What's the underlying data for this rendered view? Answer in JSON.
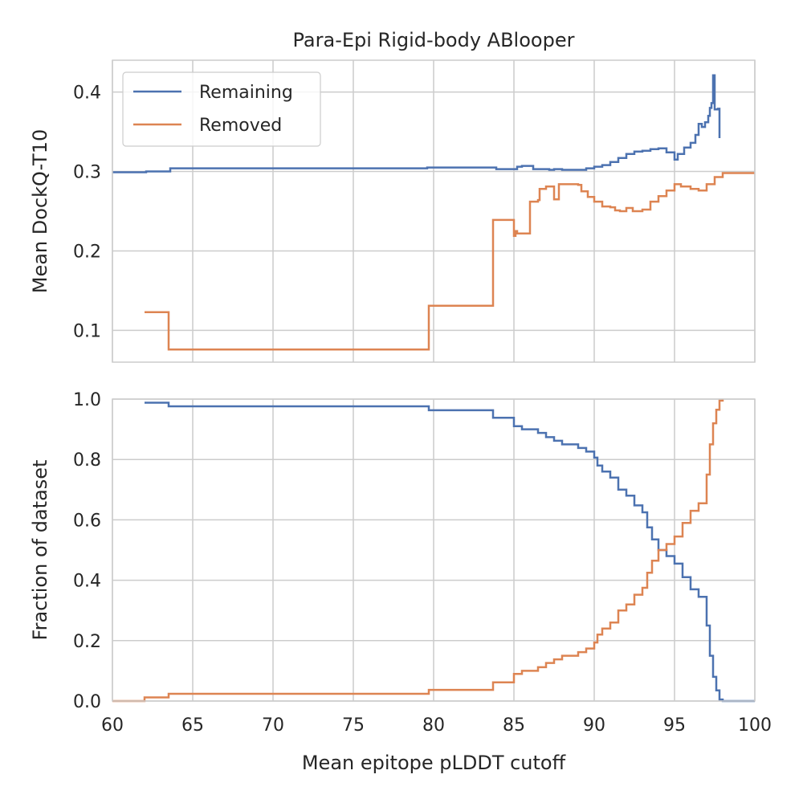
{
  "chart_data": [
    {
      "type": "line",
      "title": "Para-Epi Rigid-body ABlooper",
      "xlabel": "",
      "ylabel": "Mean DockQ-T10",
      "xlim": [
        60,
        100
      ],
      "ylim": [
        0.06,
        0.44
      ],
      "xticks": [
        60,
        65,
        70,
        75,
        80,
        85,
        90,
        95,
        100
      ],
      "yticks": [
        0.1,
        0.2,
        0.3,
        0.4
      ],
      "ytick_labels": [
        "0.1",
        "0.2",
        "0.3",
        "0.4"
      ],
      "grid": true,
      "legend": "upper-left",
      "series": [
        {
          "name": "Remaining",
          "color": "#4c72b0",
          "step": true,
          "points": [
            [
              60,
              0.299
            ],
            [
              62,
              0.299
            ],
            [
              62.1,
              0.3
            ],
            [
              63.5,
              0.3
            ],
            [
              63.6,
              0.304
            ],
            [
              79.5,
              0.304
            ],
            [
              79.6,
              0.305
            ],
            [
              83.8,
              0.305
            ],
            [
              83.9,
              0.303
            ],
            [
              85,
              0.303
            ],
            [
              85.2,
              0.306
            ],
            [
              85.5,
              0.307
            ],
            [
              86,
              0.307
            ],
            [
              86.2,
              0.303
            ],
            [
              87,
              0.303
            ],
            [
              87.2,
              0.302
            ],
            [
              87.5,
              0.303
            ],
            [
              87.8,
              0.303
            ],
            [
              88,
              0.302
            ],
            [
              89,
              0.302
            ],
            [
              89.5,
              0.304
            ],
            [
              90,
              0.306
            ],
            [
              90.5,
              0.308
            ],
            [
              91,
              0.312
            ],
            [
              91.5,
              0.317
            ],
            [
              92,
              0.322
            ],
            [
              92.5,
              0.325
            ],
            [
              93,
              0.326
            ],
            [
              93.5,
              0.328
            ],
            [
              94,
              0.329
            ],
            [
              94.5,
              0.324
            ],
            [
              95,
              0.315
            ],
            [
              95.2,
              0.322
            ],
            [
              95.6,
              0.33
            ],
            [
              96,
              0.336
            ],
            [
              96.3,
              0.346
            ],
            [
              96.5,
              0.36
            ],
            [
              96.7,
              0.356
            ],
            [
              96.9,
              0.362
            ],
            [
              97.1,
              0.37
            ],
            [
              97.2,
              0.38
            ],
            [
              97.3,
              0.386
            ],
            [
              97.4,
              0.421
            ],
            [
              97.5,
              0.378
            ],
            [
              97.7,
              0.379
            ],
            [
              97.8,
              0.342
            ]
          ]
        },
        {
          "name": "Removed",
          "color": "#dd8452",
          "step": true,
          "points": [
            [
              62,
              0.123
            ],
            [
              63.5,
              0.123
            ],
            [
              63.5,
              0.076
            ],
            [
              79.7,
              0.076
            ],
            [
              79.7,
              0.131
            ],
            [
              83.7,
              0.131
            ],
            [
              83.7,
              0.239
            ],
            [
              85,
              0.239
            ],
            [
              85,
              0.219
            ],
            [
              85.1,
              0.225
            ],
            [
              85.2,
              0.222
            ],
            [
              86,
              0.222
            ],
            [
              86,
              0.262
            ],
            [
              86.5,
              0.264
            ],
            [
              86.6,
              0.278
            ],
            [
              87,
              0.281
            ],
            [
              87.5,
              0.281
            ],
            [
              87.5,
              0.265
            ],
            [
              87.8,
              0.265
            ],
            [
              87.8,
              0.284
            ],
            [
              88.5,
              0.284
            ],
            [
              89,
              0.283
            ],
            [
              89.2,
              0.275
            ],
            [
              89.6,
              0.268
            ],
            [
              90,
              0.262
            ],
            [
              90.5,
              0.256
            ],
            [
              91,
              0.255
            ],
            [
              91.3,
              0.251
            ],
            [
              91.6,
              0.25
            ],
            [
              92,
              0.254
            ],
            [
              92.4,
              0.25
            ],
            [
              93,
              0.252
            ],
            [
              93.5,
              0.262
            ],
            [
              94,
              0.269
            ],
            [
              94.5,
              0.276
            ],
            [
              95,
              0.284
            ],
            [
              95.4,
              0.281
            ],
            [
              96,
              0.278
            ],
            [
              96.5,
              0.276
            ],
            [
              97,
              0.284
            ],
            [
              97.5,
              0.293
            ],
            [
              98,
              0.298
            ],
            [
              100,
              0.298
            ]
          ]
        }
      ]
    },
    {
      "type": "line",
      "title": "",
      "xlabel": "Mean epitope pLDDT cutoff",
      "ylabel": "Fraction of dataset",
      "xlim": [
        60,
        100
      ],
      "ylim": [
        0.0,
        1.0
      ],
      "xticks": [
        60,
        65,
        70,
        75,
        80,
        85,
        90,
        95,
        100
      ],
      "xtick_labels": [
        "60",
        "65",
        "70",
        "75",
        "80",
        "85",
        "90",
        "95",
        "100"
      ],
      "yticks": [
        0.0,
        0.2,
        0.4,
        0.6,
        0.8,
        1.0
      ],
      "ytick_labels": [
        "0.0",
        "0.2",
        "0.4",
        "0.6",
        "0.8",
        "1.0"
      ],
      "grid": true,
      "series": [
        {
          "name": "Remaining",
          "color": "#4c72b0",
          "step": true,
          "points": [
            [
              62,
              0.988
            ],
            [
              63.5,
              0.988
            ],
            [
              63.5,
              0.976
            ],
            [
              79.7,
              0.976
            ],
            [
              79.7,
              0.963
            ],
            [
              83.7,
              0.963
            ],
            [
              83.7,
              0.938
            ],
            [
              85,
              0.938
            ],
            [
              85,
              0.91
            ],
            [
              85.5,
              0.9
            ],
            [
              86.5,
              0.888
            ],
            [
              87,
              0.874
            ],
            [
              87.5,
              0.862
            ],
            [
              88,
              0.85
            ],
            [
              89,
              0.838
            ],
            [
              89.5,
              0.826
            ],
            [
              90,
              0.806
            ],
            [
              90.2,
              0.78
            ],
            [
              90.5,
              0.76
            ],
            [
              91,
              0.74
            ],
            [
              91.5,
              0.7
            ],
            [
              92,
              0.68
            ],
            [
              92.5,
              0.648
            ],
            [
              93,
              0.625
            ],
            [
              93.3,
              0.575
            ],
            [
              93.6,
              0.535
            ],
            [
              94,
              0.5
            ],
            [
              94.5,
              0.48
            ],
            [
              95,
              0.455
            ],
            [
              95.5,
              0.41
            ],
            [
              96,
              0.37
            ],
            [
              96.5,
              0.345
            ],
            [
              97,
              0.25
            ],
            [
              97.2,
              0.15
            ],
            [
              97.4,
              0.08
            ],
            [
              97.6,
              0.035
            ],
            [
              97.8,
              0.005
            ],
            [
              98,
              0.0
            ],
            [
              100,
              0.0
            ]
          ]
        },
        {
          "name": "Removed",
          "color": "#dd8452",
          "step": true,
          "points": [
            [
              60,
              0.0
            ],
            [
              62,
              0.0
            ],
            [
              62,
              0.012
            ],
            [
              63.5,
              0.012
            ],
            [
              63.5,
              0.024
            ],
            [
              79.7,
              0.024
            ],
            [
              79.7,
              0.037
            ],
            [
              83.7,
              0.037
            ],
            [
              83.7,
              0.062
            ],
            [
              85,
              0.062
            ],
            [
              85,
              0.09
            ],
            [
              85.5,
              0.1
            ],
            [
              86.5,
              0.112
            ],
            [
              87,
              0.126
            ],
            [
              87.5,
              0.138
            ],
            [
              88,
              0.15
            ],
            [
              89,
              0.162
            ],
            [
              89.5,
              0.174
            ],
            [
              90,
              0.194
            ],
            [
              90.2,
              0.22
            ],
            [
              90.5,
              0.24
            ],
            [
              91,
              0.26
            ],
            [
              91.5,
              0.3
            ],
            [
              92,
              0.32
            ],
            [
              92.5,
              0.352
            ],
            [
              93,
              0.375
            ],
            [
              93.3,
              0.425
            ],
            [
              93.6,
              0.465
            ],
            [
              94,
              0.5
            ],
            [
              94.5,
              0.52
            ],
            [
              95,
              0.545
            ],
            [
              95.5,
              0.59
            ],
            [
              96,
              0.63
            ],
            [
              96.5,
              0.655
            ],
            [
              97,
              0.75
            ],
            [
              97.2,
              0.85
            ],
            [
              97.4,
              0.92
            ],
            [
              97.6,
              0.965
            ],
            [
              97.8,
              0.995
            ],
            [
              98,
              1.0
            ]
          ]
        }
      ]
    }
  ]
}
